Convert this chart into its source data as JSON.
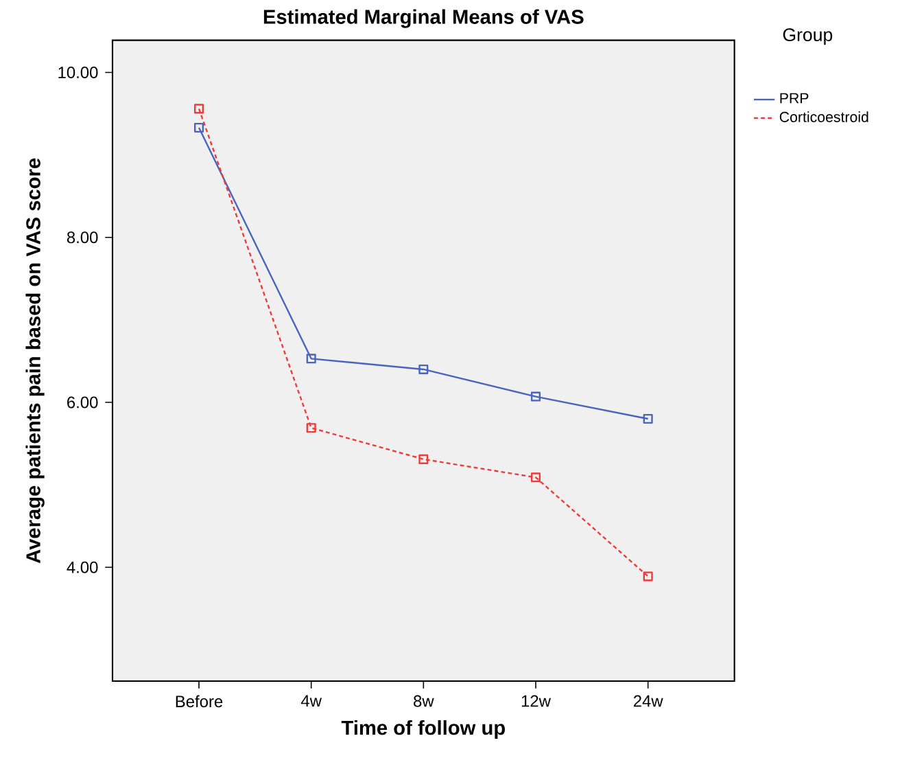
{
  "chart_data": {
    "type": "line",
    "title": "Estimated Marginal Means of VAS",
    "xlabel": "Time of follow up",
    "ylabel": "Average patients pain based on VAS score",
    "legend_title": "Group",
    "categories": [
      "Before",
      "4w",
      "8w",
      "12w",
      "24w"
    ],
    "series": [
      {
        "name": "PRP",
        "color": "#4a63c0",
        "values": [
          9.33,
          6.53,
          6.4,
          6.07,
          5.8
        ]
      },
      {
        "name": "Corticoestroid",
        "color": "#f03a3a",
        "values": [
          9.56,
          5.69,
          5.31,
          5.09,
          3.89
        ],
        "line_style": "dashed"
      }
    ],
    "ylim": [
      2.62,
      10.39
    ],
    "yticks": [
      {
        "value": 4,
        "label": "4.00"
      },
      {
        "value": 6,
        "label": "6.00"
      },
      {
        "value": 8,
        "label": "8.00"
      },
      {
        "value": 10,
        "label": "10.00"
      }
    ],
    "marker": "square",
    "legend": "right",
    "grid": false
  }
}
